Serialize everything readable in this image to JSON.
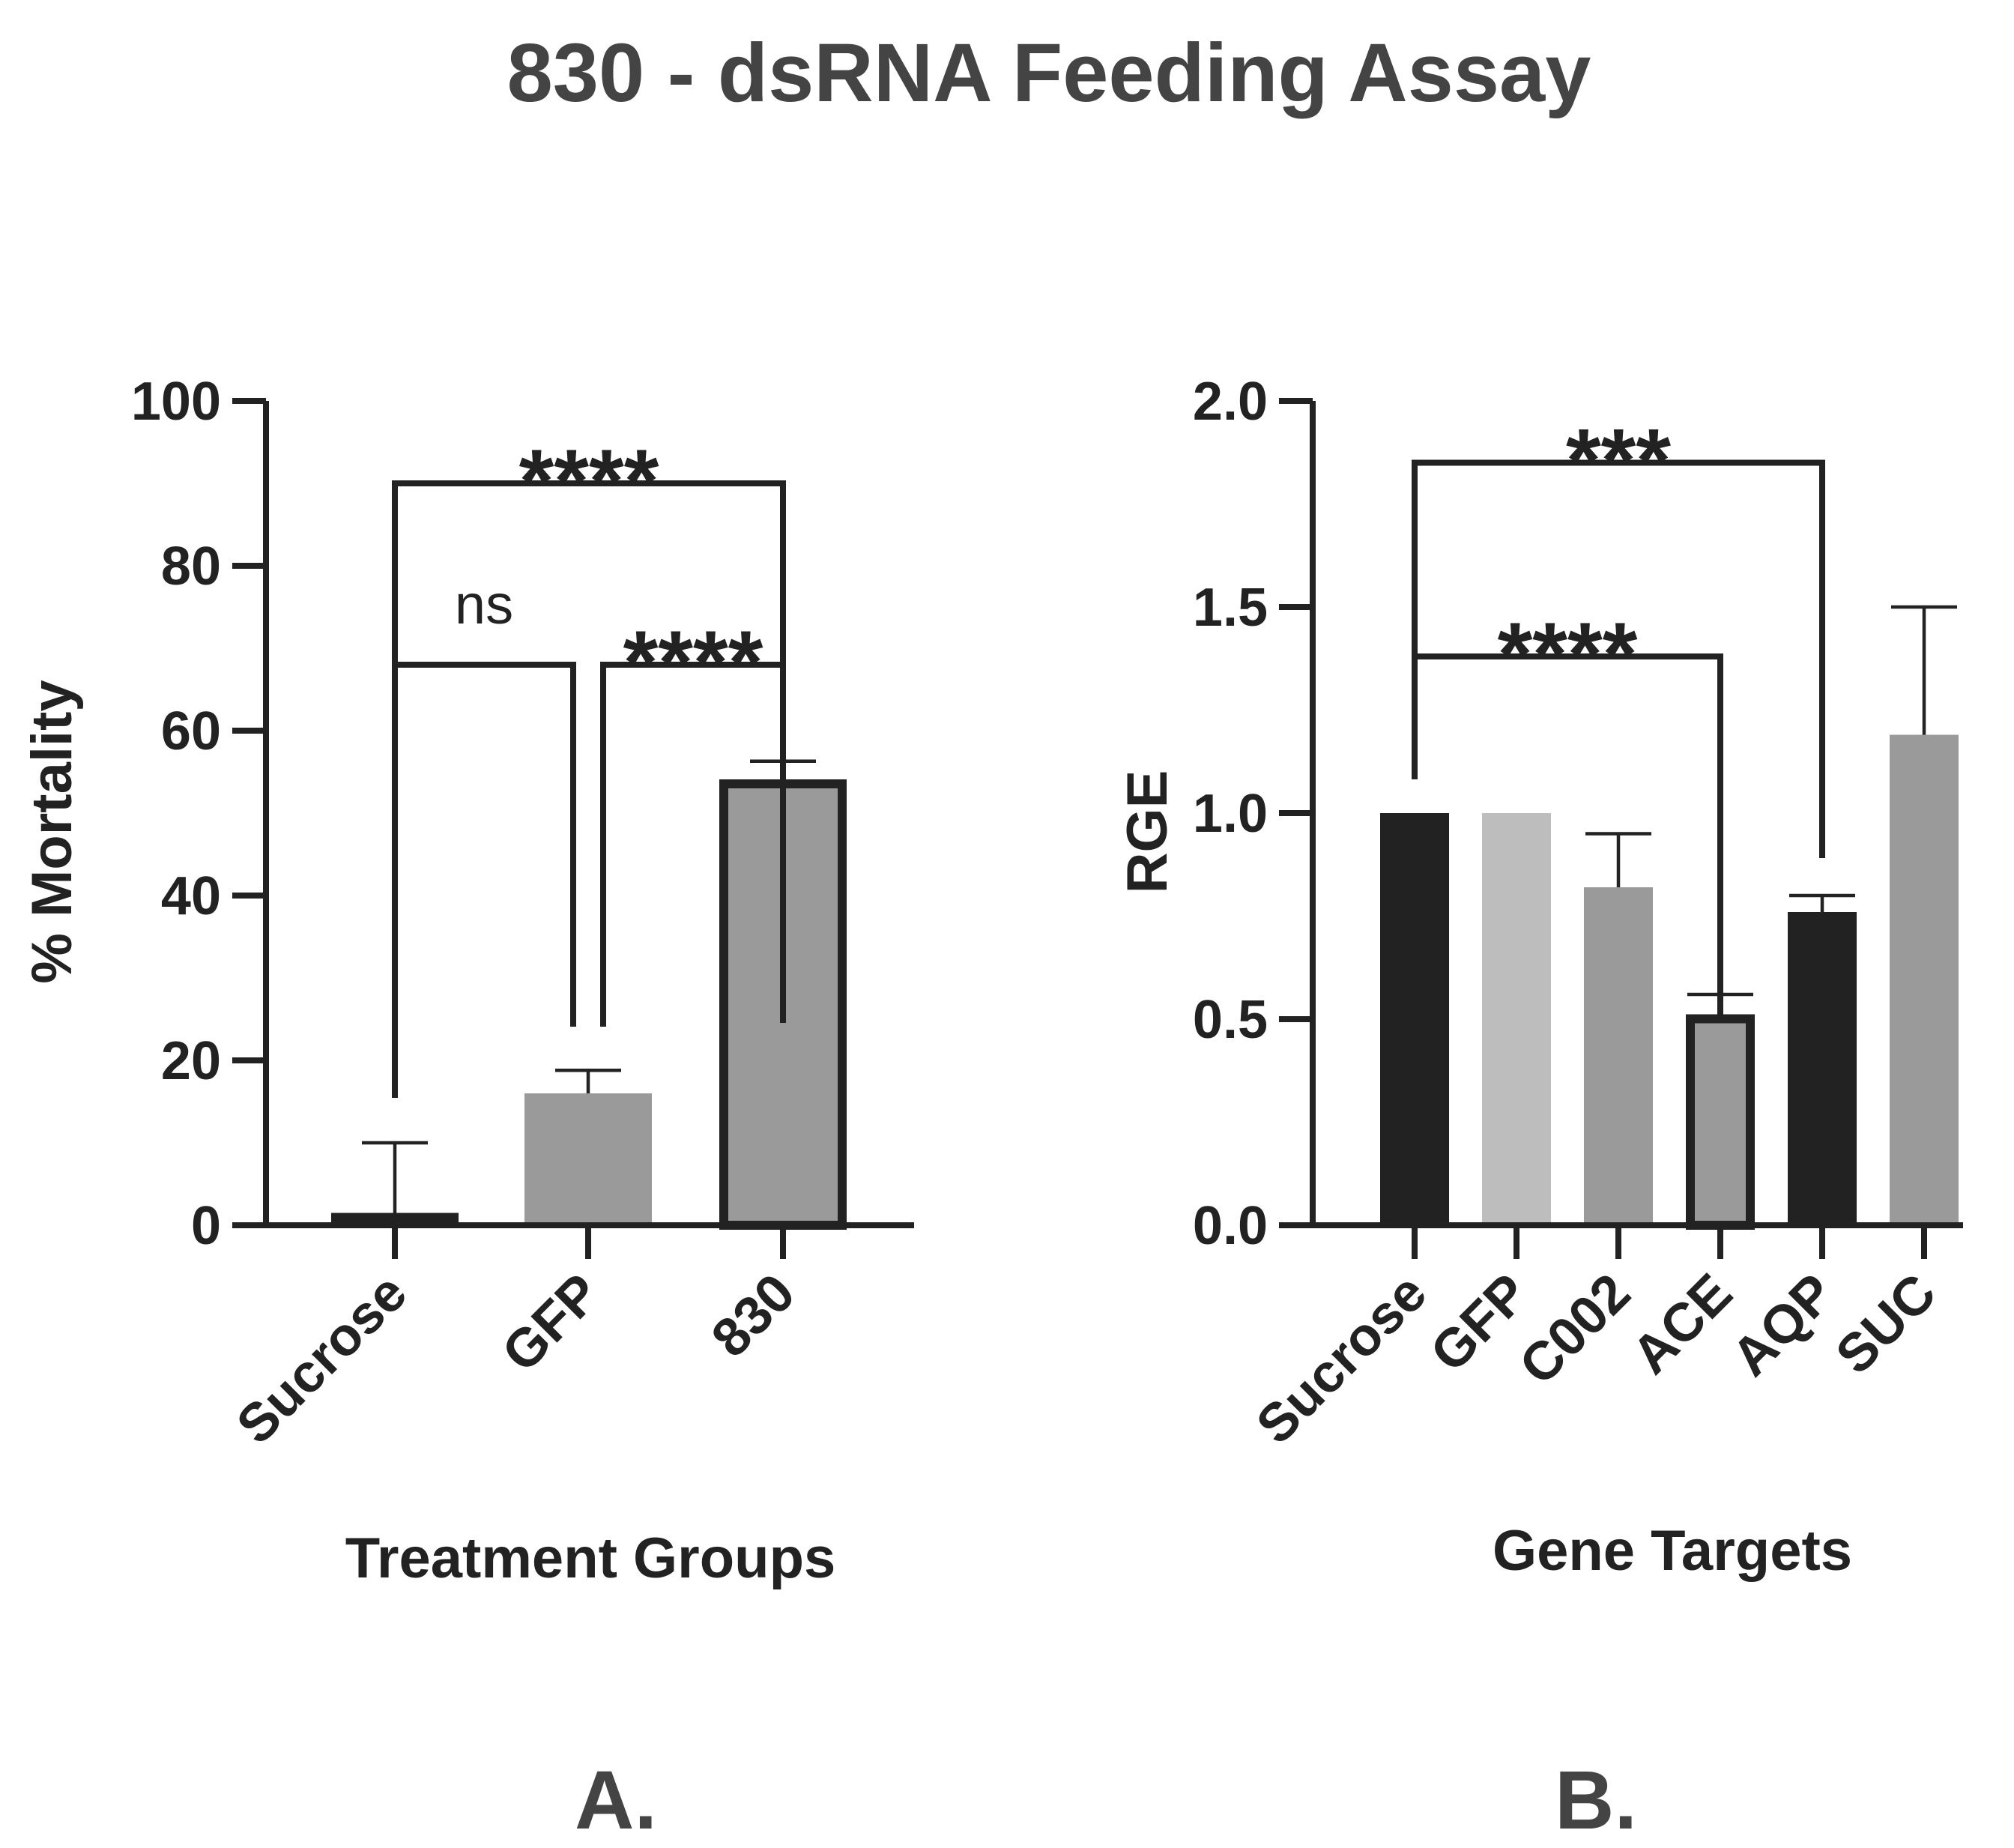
{
  "title": "830 - dsRNA Feeding Assay",
  "chart_data": [
    {
      "panel": "A.",
      "type": "bar",
      "xlabel": "Treatment Groups",
      "ylabel": "% Mortality",
      "ylim": [
        0,
        100
      ],
      "yticks": [
        "0",
        "20",
        "40",
        "60",
        "80",
        "100"
      ],
      "categories": [
        "Sucrose",
        "GFP",
        "830"
      ],
      "values": [
        1.5,
        16,
        54
      ],
      "errors": [
        8.5,
        2.8,
        2.3
      ],
      "colors": [
        "#222222",
        "#9a9a9a",
        "#9a9a9a"
      ],
      "outlined": [
        false,
        false,
        true
      ],
      "significance": [
        {
          "from": "Sucrose",
          "to": "830",
          "label": "****",
          "y": 90
        },
        {
          "from": "Sucrose",
          "to": "GFP",
          "label": "ns",
          "y": 68
        },
        {
          "from": "GFP",
          "to": "830",
          "label": "****",
          "y": 68
        }
      ]
    },
    {
      "panel": "B.",
      "type": "bar",
      "xlabel": "Gene Targets",
      "ylabel": "RGE",
      "ylim": [
        0,
        2.0
      ],
      "yticks": [
        "0.0",
        "0.5",
        "1.0",
        "1.5",
        "2.0"
      ],
      "categories": [
        "Sucrose",
        "GFP",
        "C002",
        "ACE",
        "AQP",
        "SUC"
      ],
      "values": [
        1.0,
        1.0,
        0.82,
        0.51,
        0.76,
        1.19
      ],
      "errors": [
        0,
        0,
        0.13,
        0.05,
        0.04,
        0.31
      ],
      "colors": [
        "#222222",
        "#bdbdbd",
        "#9a9a9a",
        "#9a9a9a",
        "#222222",
        "#9a9a9a"
      ],
      "outlined": [
        false,
        false,
        false,
        true,
        false,
        false
      ],
      "significance": [
        {
          "from": "Sucrose",
          "to": "AQP",
          "label": "***",
          "y": 1.85
        },
        {
          "from": "Sucrose",
          "to": "ACE",
          "label": "****",
          "y": 1.38
        }
      ]
    }
  ]
}
